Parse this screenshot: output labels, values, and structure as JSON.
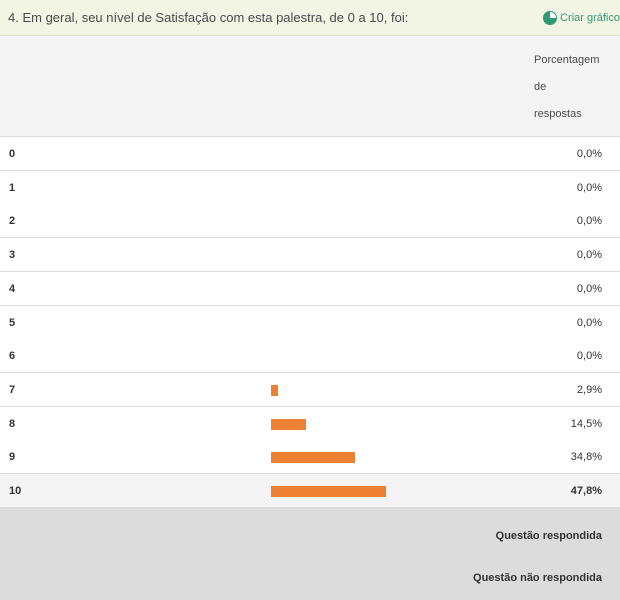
{
  "question": {
    "title": "4. Em geral, seu nível de Satisfação com esta palestra, de 0 a 10, foi:",
    "create_chart_label": "Criar gráfico",
    "chart_icon": "pie-chart-icon",
    "accent_color": "#2b9a75"
  },
  "table": {
    "column_header_lines": [
      "Porcentagem",
      "de",
      "respostas"
    ],
    "bar_color": "#ee8033",
    "rows": [
      {
        "label": "0",
        "percent_text": "0,0%",
        "percent": 0.0
      },
      {
        "label": "1",
        "percent_text": "0,0%",
        "percent": 0.0
      },
      {
        "label": "2",
        "percent_text": "0,0%",
        "percent": 0.0
      },
      {
        "label": "3",
        "percent_text": "0,0%",
        "percent": 0.0
      },
      {
        "label": "4",
        "percent_text": "0,0%",
        "percent": 0.0
      },
      {
        "label": "5",
        "percent_text": "0,0%",
        "percent": 0.0
      },
      {
        "label": "6",
        "percent_text": "0,0%",
        "percent": 0.0
      },
      {
        "label": "7",
        "percent_text": "2,9%",
        "percent": 2.9
      },
      {
        "label": "8",
        "percent_text": "14,5%",
        "percent": 14.5
      },
      {
        "label": "9",
        "percent_text": "34,8%",
        "percent": 34.8
      },
      {
        "label": "10",
        "percent_text": "47,8%",
        "percent": 47.8
      }
    ]
  },
  "footer": {
    "answered_label": "Questão respondida",
    "skipped_label": "Questão não respondida"
  }
}
